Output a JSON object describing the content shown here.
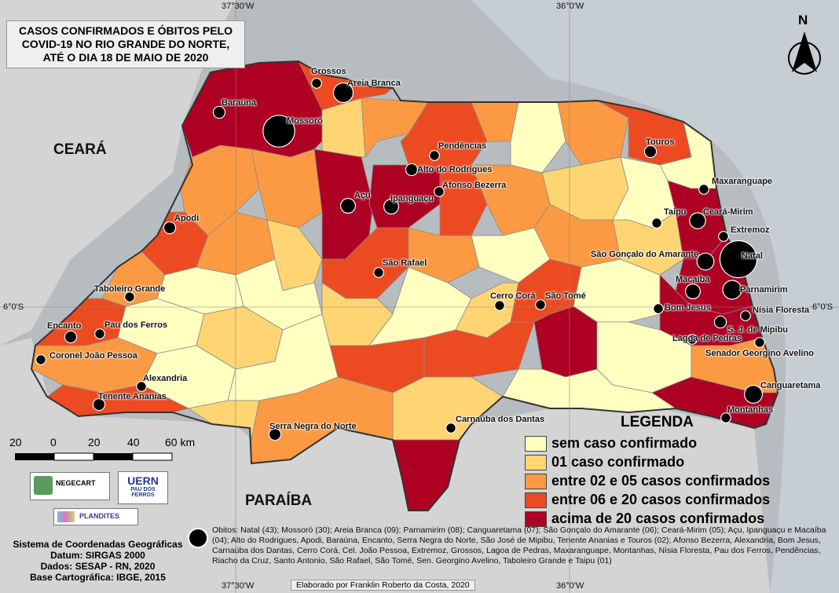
{
  "title": "CASOS CONFIRMADOS E ÓBITOS PELO COVID-19 NO RIO GRANDE DO NORTE, ATÉ O DIA 18 DE MAIO DE 2020",
  "title_lines": [
    "CASOS CONFIRMADOS E ÓBITOS PELO",
    "COVID-19 NO RIO GRANDE DO NORTE,",
    "ATÉ O DIA 18 DE MAIO DE 2020"
  ],
  "grid_labels": {
    "top_left": "37°30'W",
    "top_right": "36°0'W",
    "bottom_left": "37°30'W",
    "bottom_right": "36°0'W",
    "left_lat": "6°0'S",
    "right_lat": "6°0'S"
  },
  "north_label": "N",
  "neighbors": {
    "ceara": "CEARÁ",
    "paraiba": "PARAÍBA"
  },
  "colors": {
    "sea": "#b7bcc0",
    "outside": "#b7bcc0",
    "neighbor_land": "#d4d4d4",
    "class0": "#ffffc0",
    "class1": "#fed572",
    "class2": "#fb9a42",
    "class3": "#ec4b22",
    "class4": "#ae0022"
  },
  "legend": {
    "title": "LEGENDA",
    "items": [
      {
        "label": "sem caso confirmado",
        "color": "#ffffc0"
      },
      {
        "label": "01 caso confirmado",
        "color": "#fed572"
      },
      {
        "label": "entre 02 e 05 casos confirmados",
        "color": "#fb9a42"
      },
      {
        "label": "entre 06 e 20 casos confirmados",
        "color": "#ec4b22"
      },
      {
        "label": "acima de 20 casos confirmados",
        "color": "#ae0022"
      }
    ]
  },
  "scale": {
    "labels": [
      "20",
      "0",
      "20",
      "40",
      "60 km"
    ]
  },
  "cities": [
    {
      "name": "Grossos"
    },
    {
      "name": "Areia Branca"
    },
    {
      "name": "Baraúna"
    },
    {
      "name": "Mossoró"
    },
    {
      "name": "Pendências"
    },
    {
      "name": "Alto do Rodrigues"
    },
    {
      "name": "Afonso Bezerra"
    },
    {
      "name": "Touros"
    },
    {
      "name": "Maxaranguape"
    },
    {
      "name": "Açu"
    },
    {
      "name": "Ipanguaçu"
    },
    {
      "name": "Apodi"
    },
    {
      "name": "Taipu"
    },
    {
      "name": "Ceará-Mirim"
    },
    {
      "name": "Extremoz"
    },
    {
      "name": "São Rafael"
    },
    {
      "name": "São Gonçalo do Amarante"
    },
    {
      "name": "Natal"
    },
    {
      "name": "Macaíba"
    },
    {
      "name": "Parnamirim"
    },
    {
      "name": "Taboleiro Grande"
    },
    {
      "name": "Cerro Corá"
    },
    {
      "name": "São Tomé"
    },
    {
      "name": "Bom Jesus"
    },
    {
      "name": "Nísia Floresta"
    },
    {
      "name": "S. J. de Mipibu"
    },
    {
      "name": "Encanto"
    },
    {
      "name": "Pau dos Ferros"
    },
    {
      "name": "Lagoa de Pedras"
    },
    {
      "name": "Coronel João Pessoa"
    },
    {
      "name": "Senador Georgino Avelino"
    },
    {
      "name": "Alexandria"
    },
    {
      "name": "Canguaretama"
    },
    {
      "name": "Tenente Ananias"
    },
    {
      "name": "Montanhas"
    },
    {
      "name": "Carnaúba dos Dantas"
    },
    {
      "name": "Serra Negra do Norte"
    }
  ],
  "deaths": {
    "Natal": 43,
    "Mossoró": 30,
    "Areia Branca": 9,
    "Parnamirim": 8,
    "Canguaretama": 7,
    "São Gonçalo do Amarante": 6,
    "Ceará-Mirim": 5,
    "Açu": 4,
    "Ipanguaçu": 4,
    "Macaíba": 4,
    "Alto do Rodrigues": 2,
    "Apodi": 2,
    "Baraúna": 2,
    "Encanto": 2,
    "Serra Negra do Norte": 2,
    "S. J. de Mipibu": 2,
    "Tenente Ananias": 2,
    "Touros": 2,
    "Afonso Bezerra": 1,
    "Alexandria": 1,
    "Bom Jesus": 1,
    "Carnaúba dos Dantas": 1,
    "Cerro Corá": 1,
    "Coronel João Pessoa": 1,
    "Extremoz": 1,
    "Grossos": 1,
    "Lagoa de Pedras": 1,
    "Maxaranguape": 1,
    "Montanhas": 1,
    "Nísia Floresta": 1,
    "Pau dos Ferros": 1,
    "Pendências": 1,
    "São Rafael": 1,
    "São Tomé": 1,
    "Senador Georgino Avelino": 1,
    "Taboleiro Grande": 1,
    "Taipu": 1
  },
  "obitos_text": "Obitos: Natal (43); Mossoró (30); Areia Branca (09);  Parnamirim (08); Canguaretama (07); São Gonçalo do Amarante (06); Ceará-Mirim (05); Açu, Ipanguaçu e  Macaíba  (04); Alto do Rodrigues, Apodi, Baraúna,  Encanto, Serra Negra do Norte, São José de Mipibu, Tenente Ananias e Touros (02); Afonso Bezerra, Alexandria, Bom Jesus, Carnaúba dos Dantas, Cerro Corá, Cel. João Pessoa, Extremoz, Grossos, Lagoa de Pedras, Maxaranguape, Montanhas, Nísia Floresta, Pau dos Ferros, Pendências, Riacho da Cruz, Santo Antonio, São Rafael, São Tomé, Sen. Georgino Avelino, Taboleiro Grande e Taipu (01)",
  "info": {
    "line1": "Sistema de Coordenadas Geográficas",
    "line2": "Datum: SIRGAS 2000",
    "line3": "Dados: SESAP - RN, 2020",
    "line4": "Base Cartográfica: IBGE, 2015"
  },
  "logos": {
    "negecart": "NEGECART",
    "uern": "UERN",
    "uern_sub": "PAU DOS FERROS",
    "plandites": "PLANDITES"
  },
  "credit": "Elaborado por Franklin Roberto da Costa, 2020"
}
